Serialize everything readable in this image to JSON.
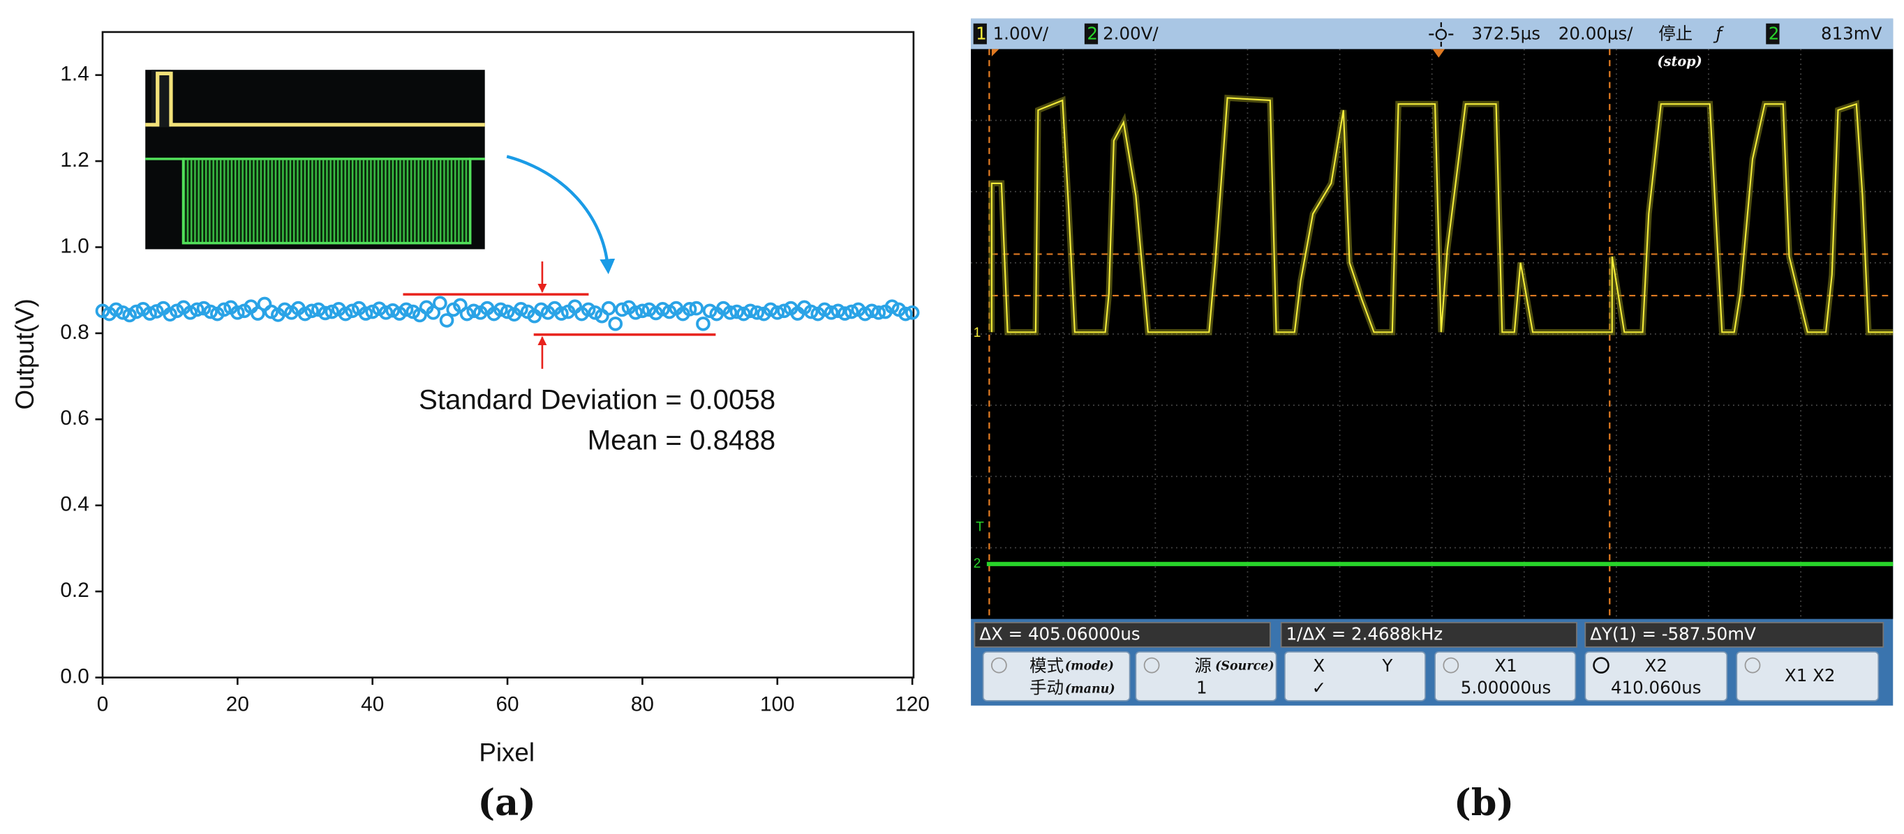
{
  "chart_data": {
    "type": "scatter",
    "x_label": "Pixel",
    "y_label": "Output(V)",
    "annotations": [
      "Standard Deviation = 0.0058",
      "Mean = 0.8488"
    ],
    "color": "#2aa3e6",
    "xlim": [
      0,
      120
    ],
    "ylim": [
      0,
      1.5
    ],
    "xticks": [
      0,
      20,
      40,
      60,
      80,
      100,
      120
    ],
    "yticks": [
      {
        "value": 0,
        "label": "0.0"
      },
      0.2,
      0.4,
      0.6,
      0.8,
      {
        "value": 1,
        "label": "1.0"
      },
      1.2,
      1.4
    ],
    "x": [
      0,
      1,
      2,
      3,
      4,
      5,
      6,
      7,
      8,
      9,
      10,
      11,
      12,
      13,
      14,
      15,
      16,
      17,
      18,
      19,
      20,
      21,
      22,
      23,
      24,
      25,
      26,
      27,
      28,
      29,
      30,
      31,
      32,
      33,
      34,
      35,
      36,
      37,
      38,
      39,
      40,
      41,
      42,
      43,
      44,
      45,
      46,
      47,
      48,
      49,
      50,
      51,
      52,
      53,
      54,
      55,
      56,
      57,
      58,
      59,
      60,
      61,
      62,
      63,
      64,
      65,
      66,
      67,
      68,
      69,
      70,
      71,
      72,
      73,
      74,
      75,
      76,
      77,
      78,
      79,
      80,
      81,
      82,
      83,
      84,
      85,
      86,
      87,
      88,
      89,
      90,
      91,
      92,
      93,
      94,
      95,
      96,
      97,
      98,
      99,
      100,
      101,
      102,
      103,
      104,
      105,
      106,
      107,
      108,
      109,
      110,
      111,
      112,
      113,
      114,
      115,
      116,
      117,
      118,
      119,
      120
    ],
    "values": [
      0.852,
      0.845,
      0.855,
      0.848,
      0.842,
      0.85,
      0.856,
      0.846,
      0.851,
      0.858,
      0.844,
      0.852,
      0.86,
      0.848,
      0.855,
      0.858,
      0.85,
      0.845,
      0.855,
      0.86,
      0.848,
      0.852,
      0.862,
      0.846,
      0.868,
      0.85,
      0.843,
      0.855,
      0.848,
      0.858,
      0.845,
      0.852,
      0.855,
      0.847,
      0.85,
      0.856,
      0.845,
      0.852,
      0.858,
      0.846,
      0.85,
      0.857,
      0.848,
      0.853,
      0.846,
      0.855,
      0.85,
      0.842,
      0.86,
      0.848,
      0.87,
      0.83,
      0.855,
      0.865,
      0.845,
      0.852,
      0.848,
      0.858,
      0.845,
      0.855,
      0.85,
      0.844,
      0.856,
      0.85,
      0.84,
      0.855,
      0.848,
      0.858,
      0.846,
      0.85,
      0.862,
      0.845,
      0.855,
      0.848,
      0.84,
      0.858,
      0.822,
      0.855,
      0.86,
      0.848,
      0.852,
      0.855,
      0.847,
      0.856,
      0.85,
      0.858,
      0.845,
      0.856,
      0.858,
      0.822,
      0.852,
      0.845,
      0.858,
      0.848,
      0.85,
      0.845,
      0.852,
      0.848,
      0.845,
      0.855,
      0.848,
      0.852,
      0.858,
      0.846,
      0.86,
      0.85,
      0.845,
      0.855,
      0.848,
      0.852,
      0.846,
      0.85,
      0.855,
      0.845,
      0.852,
      0.848,
      0.85,
      0.862,
      0.855,
      0.845,
      0.848
    ]
  },
  "oscilloscope": {
    "header": {
      "ch1": "1",
      "ch1_scale": "1.00V/",
      "ch2": "2",
      "ch2_scale": "2.00V/",
      "delay": "372.5µs",
      "timebase": "20.00µs/",
      "run_state": "停止",
      "run_state_note": "(stop)",
      "trigger_slope": "ƒ",
      "trigger_source": "2",
      "trigger_level": "813mV"
    },
    "markers": {
      "ch1": "1",
      "ch2": "2",
      "trigger": "T"
    },
    "readouts": [
      "ΔX = 405.06000us",
      "1/ΔX = 2.4688kHz",
      "ΔY(1) = -587.50mV"
    ],
    "softkeys": [
      {
        "label": "模式",
        "note": "(mode)",
        "value": "手动",
        "value_note": "(manu)"
      },
      {
        "label": "源",
        "note": "(Source)",
        "value": "1"
      },
      {
        "label": "X",
        "label2": "Y",
        "value": "✓"
      },
      {
        "label": "X1",
        "value": "5.00000us"
      },
      {
        "label": "X2",
        "value": "410.060us"
      },
      {
        "label": "X1 X2"
      }
    ]
  },
  "panel_labels": [
    "(a)",
    "(b)"
  ]
}
